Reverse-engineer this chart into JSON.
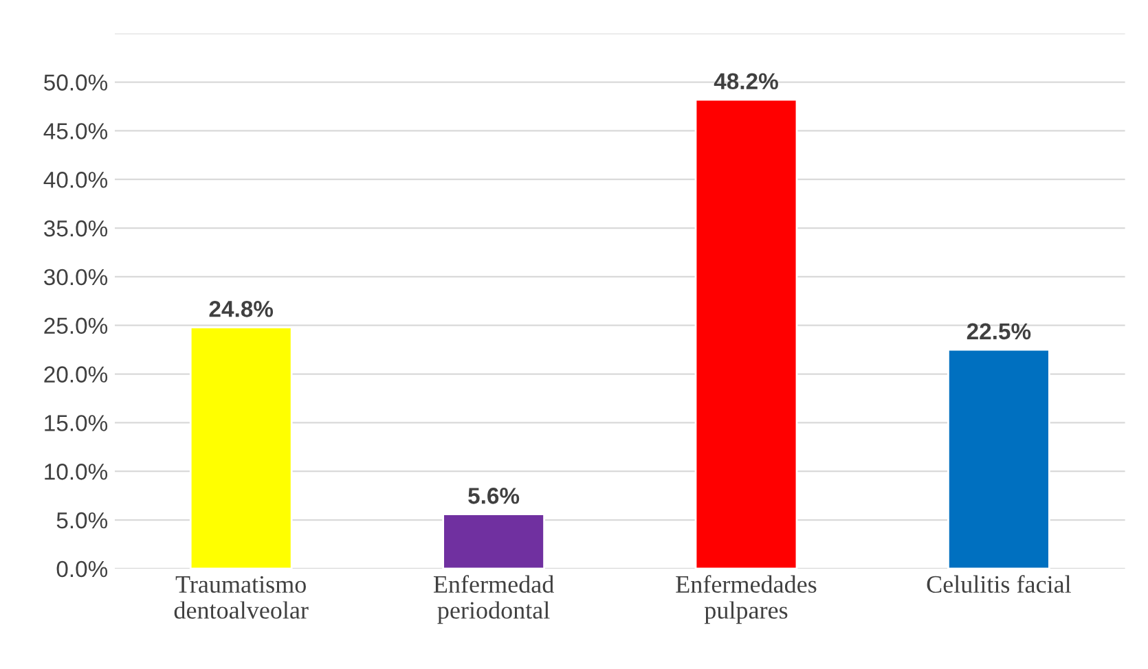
{
  "chart_data": {
    "type": "bar",
    "categories": [
      "Traumatismo\ndentoalveolar",
      "Enfermedad\nperiodontal",
      "Enfermedades\npulpares",
      "Celulitis facial"
    ],
    "values": [
      24.8,
      5.6,
      48.2,
      22.5
    ],
    "colors": [
      "#ffff00",
      "#7030a0",
      "#ff0000",
      "#0070c0"
    ],
    "value_labels": [
      "24.8%",
      "5.6%",
      "48.2%",
      "22.5%"
    ],
    "ylim": [
      0,
      55
    ],
    "yticks": [
      {
        "value": 0,
        "label": "0.0%"
      },
      {
        "value": 5,
        "label": "5.0%"
      },
      {
        "value": 10,
        "label": "10.0%"
      },
      {
        "value": 15,
        "label": "15.0%"
      },
      {
        "value": 20,
        "label": "20.0%"
      },
      {
        "value": 25,
        "label": "25.0%"
      },
      {
        "value": 30,
        "label": "30.0%"
      },
      {
        "value": 35,
        "label": "35.0%"
      },
      {
        "value": 40,
        "label": "40.0%"
      },
      {
        "value": 45,
        "label": "45.0%"
      },
      {
        "value": 50,
        "label": "50.0%"
      },
      {
        "value": 55,
        "label": null
      }
    ],
    "grid": "y"
  }
}
